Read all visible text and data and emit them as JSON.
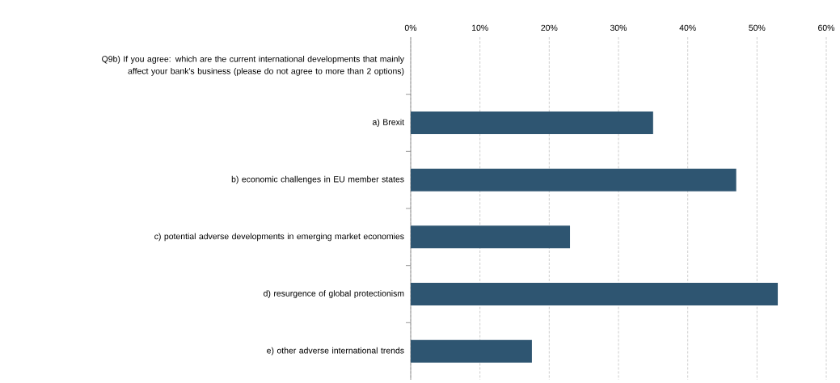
{
  "chart_data": {
    "type": "bar",
    "orientation": "horizontal",
    "categories": [
      "Q9b) If you agree: which are the current international developments that mainly affect your bank's business (please do not agree to more than 2 options)",
      "a) Brexit",
      "b) economic challenges in EU member states",
      "c) potential adverse developments in emerging market economies",
      "d) resurgence of global protectionism",
      "e) other adverse international trends"
    ],
    "values": [
      null,
      35,
      47,
      23,
      53,
      17.5
    ],
    "color": "#2e5571",
    "xlim": [
      0,
      60
    ],
    "xticks": [
      {
        "value": 0,
        "label": "0%"
      },
      {
        "value": 10,
        "label": "10%"
      },
      {
        "value": 20,
        "label": "20%"
      },
      {
        "value": 30,
        "label": "30%"
      },
      {
        "value": 40,
        "label": "40%"
      },
      {
        "value": 50,
        "label": "50%"
      },
      {
        "value": 60,
        "label": "60%"
      }
    ],
    "grid": "x"
  }
}
